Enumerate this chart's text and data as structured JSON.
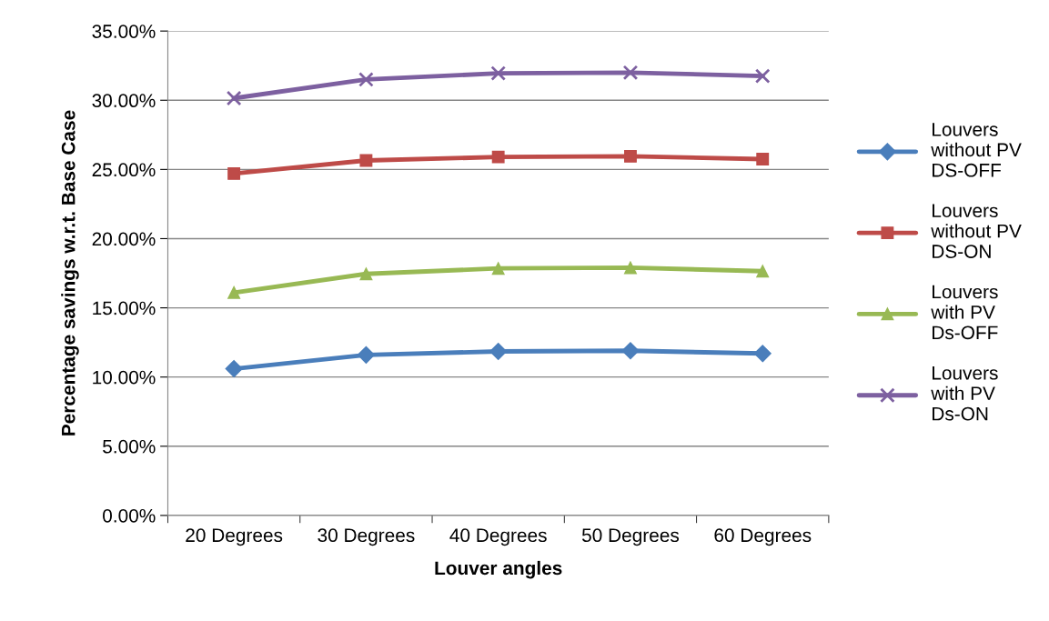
{
  "chart_data": {
    "type": "line",
    "xlabel": "Louver angles",
    "ylabel": "Percentage savings w.r.t. Base Case",
    "categories": [
      "20 Degrees",
      "30 Degrees",
      "40 Degrees",
      "50 Degrees",
      "60 Degrees"
    ],
    "series": [
      {
        "name": "Louvers\nwithout PV\nDS-OFF",
        "color": "#4a7ebb",
        "marker": "diamond",
        "values": [
          10.6,
          11.6,
          11.85,
          11.9,
          11.7
        ]
      },
      {
        "name": "Louvers\nwithout PV\nDS-ON",
        "color": "#be4b48",
        "marker": "square",
        "values": [
          24.7,
          25.65,
          25.9,
          25.95,
          25.75
        ]
      },
      {
        "name": "Louvers\nwith PV\nDs-OFF",
        "color": "#98b954",
        "marker": "triangle",
        "values": [
          16.1,
          17.45,
          17.85,
          17.9,
          17.65
        ]
      },
      {
        "name": "Louvers\nwith PV\nDs-ON",
        "color": "#7d60a0",
        "marker": "cross",
        "values": [
          30.15,
          31.5,
          31.95,
          32.0,
          31.75
        ]
      }
    ],
    "ylim": [
      0,
      35
    ],
    "yticks": [
      {
        "value": 0,
        "label": "0.00%"
      },
      {
        "value": 5,
        "label": "5.00%"
      },
      {
        "value": 10,
        "label": "10.00%"
      },
      {
        "value": 15,
        "label": "15.00%"
      },
      {
        "value": 20,
        "label": "20.00%"
      },
      {
        "value": 25,
        "label": "25.00%"
      },
      {
        "value": 30,
        "label": "30.00%"
      },
      {
        "value": 35,
        "label": "35.00%"
      }
    ],
    "grid": "y",
    "legend": "right",
    "line_style": "solid"
  }
}
